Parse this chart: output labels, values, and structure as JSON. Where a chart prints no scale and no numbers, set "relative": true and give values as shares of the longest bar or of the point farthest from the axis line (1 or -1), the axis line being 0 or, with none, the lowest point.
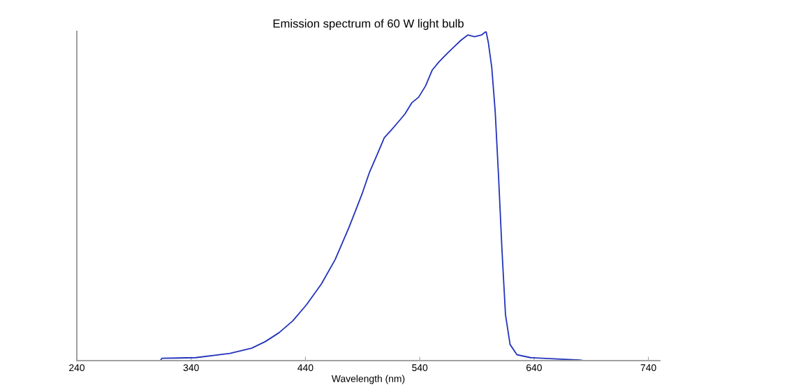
{
  "chart_data": {
    "type": "line",
    "title": "Emission spectrum of 60 W light bulb",
    "xlabel": "Wavelength (nm)",
    "relative": true,
    "xlim": [
      240,
      750
    ],
    "xticks": [
      240,
      340,
      440,
      540,
      640,
      740
    ],
    "grid": false,
    "legend": false,
    "marker": "none",
    "line_style": "solid",
    "series": [
      {
        "color": "#2233bb",
        "x": [
          240,
          313,
          314.5,
          344,
          374,
          393,
          405,
          417,
          429,
          441,
          454,
          466,
          478,
          484,
          490,
          496,
          503,
          509,
          515,
          521,
          527,
          533,
          539,
          545,
          551,
          557,
          564,
          570,
          576,
          582,
          588,
          594,
          598,
          600,
          603,
          606,
          609,
          612,
          615,
          619,
          625,
          637,
          660,
          680,
          683,
          750
        ],
        "values": [
          0,
          0,
          0.007,
          0.009,
          0.022,
          0.038,
          0.058,
          0.085,
          0.121,
          0.17,
          0.233,
          0.307,
          0.404,
          0.457,
          0.511,
          0.572,
          0.628,
          0.677,
          0.7,
          0.724,
          0.749,
          0.783,
          0.8,
          0.834,
          0.883,
          0.908,
          0.933,
          0.953,
          0.973,
          0.989,
          0.984,
          0.989,
          1,
          0.966,
          0.89,
          0.756,
          0.554,
          0.33,
          0.139,
          0.049,
          0.018,
          0.009,
          0.005,
          0.002,
          0,
          0
        ]
      }
    ]
  }
}
